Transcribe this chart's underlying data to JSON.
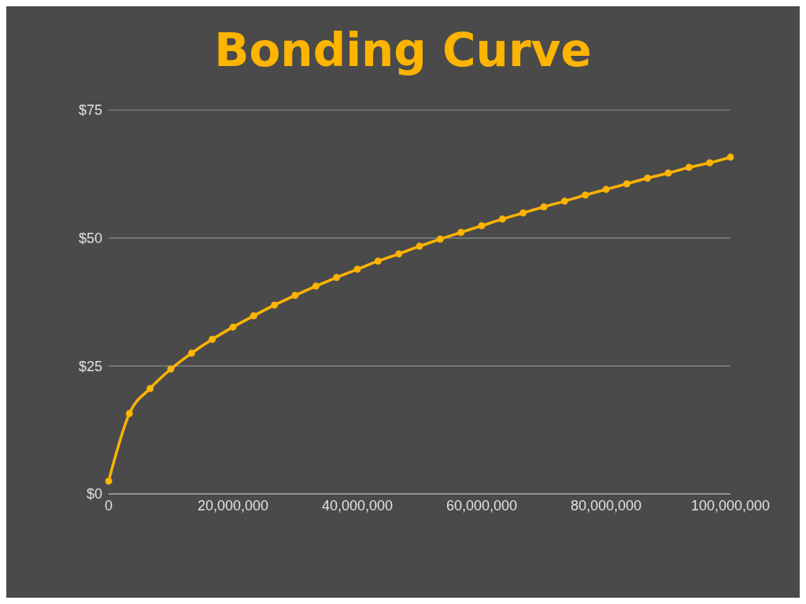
{
  "chart_data": {
    "type": "line",
    "title": "Bonding Curve",
    "x": [
      0,
      3333333,
      6666667,
      10000000,
      13333333,
      16666667,
      20000000,
      23333333,
      26666667,
      30000000,
      33333333,
      36666667,
      40000000,
      43333333,
      46666667,
      50000000,
      53333333,
      56666667,
      60000000,
      63333333,
      66666667,
      70000000,
      73333333,
      76666667,
      80000000,
      83333333,
      86666667,
      90000000,
      93333333,
      96666667,
      100000000
    ],
    "series": [
      {
        "color": "#ffb400",
        "values": [
          2.5,
          15.7,
          20.6,
          24.4,
          27.5,
          30.2,
          32.6,
          34.8,
          36.9,
          38.8,
          40.6,
          42.3,
          43.9,
          45.5,
          46.9,
          48.4,
          49.8,
          51.1,
          52.4,
          53.7,
          54.9,
          56.1,
          57.2,
          58.4,
          59.5,
          60.6,
          61.7,
          62.7,
          63.8,
          64.7,
          65.8
        ]
      }
    ],
    "xlim": [
      0,
      100000000
    ],
    "xticks": [
      {
        "value": 0,
        "label": "0"
      },
      {
        "value": 20000000,
        "label": "20,000,000"
      },
      {
        "value": 40000000,
        "label": "40,000,000"
      },
      {
        "value": 60000000,
        "label": "60,000,000"
      },
      {
        "value": 80000000,
        "label": "80,000,000"
      },
      {
        "value": 100000000,
        "label": "100,000,000"
      }
    ],
    "ylim": [
      0,
      75
    ],
    "yticks": [
      {
        "value": 0,
        "label": "$0"
      },
      {
        "value": 25,
        "label": "$25"
      },
      {
        "value": 50,
        "label": "$50"
      },
      {
        "value": 75,
        "label": "$75"
      }
    ],
    "grid": "y",
    "marker": "circle",
    "line_style": "solid",
    "legend": false
  }
}
